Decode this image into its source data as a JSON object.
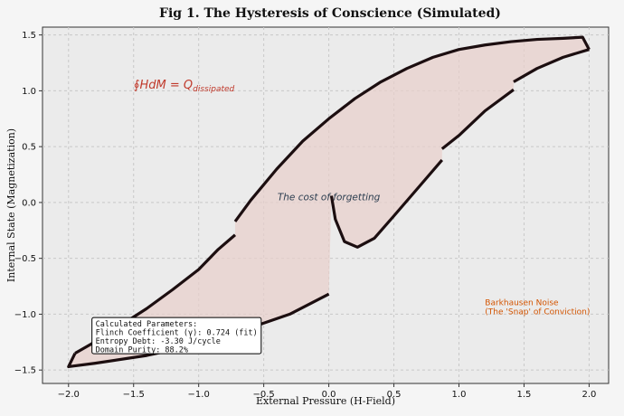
{
  "chart_data": {
    "type": "line",
    "title": "Fig 1. The Hysteresis of Conscience (Simulated)",
    "x_label": "External Pressure (H-Field)",
    "y_label": "Internal State (Magnetization)",
    "xlim": [
      -2.2,
      2.15
    ],
    "ylim": [
      -1.62,
      1.57
    ],
    "xticks": [
      {
        "value": -2,
        "label": "−2.0"
      },
      {
        "value": -1.5,
        "label": "−1.5"
      },
      {
        "value": -1,
        "label": "−1.0"
      },
      {
        "value": -0.5,
        "label": "−0.5"
      },
      {
        "value": 0,
        "label": "0.0"
      },
      {
        "value": 0.5,
        "label": "0.5"
      },
      {
        "value": 1,
        "label": "1.0"
      },
      {
        "value": 1.5,
        "label": "1.5"
      },
      {
        "value": 2,
        "label": "2.0"
      }
    ],
    "yticks": [
      {
        "value": -1.5,
        "label": "−1.5"
      },
      {
        "value": -1,
        "label": "−1.0"
      },
      {
        "value": -0.5,
        "label": "−0.5"
      },
      {
        "value": 0,
        "label": "0.0"
      },
      {
        "value": 0.5,
        "label": "0.5"
      },
      {
        "value": 1,
        "label": "1.0"
      },
      {
        "value": 1.5,
        "label": "1.5"
      }
    ],
    "grid": true,
    "fill_color": "#e8cfca",
    "series": [
      {
        "color": "#1c0e10",
        "x": [
          -1.95,
          -1.8,
          -1.6,
          -1.4,
          -1.2,
          -1.0,
          -0.85,
          -0.72,
          null,
          -0.72,
          -0.6,
          -0.4,
          -0.2,
          0,
          0.2,
          0.4,
          0.6,
          0.8,
          1.0,
          1.2,
          1.4,
          1.6,
          1.8,
          1.95,
          2.0
        ],
        "values": [
          -1.35,
          -1.25,
          -1.1,
          -0.95,
          -0.78,
          -0.6,
          -0.42,
          -0.29,
          null,
          -0.17,
          0.02,
          0.3,
          0.55,
          0.75,
          0.93,
          1.08,
          1.2,
          1.3,
          1.37,
          1.41,
          1.44,
          1.46,
          1.47,
          1.48,
          1.37
        ]
      },
      {
        "color": "#1c0e10",
        "x": [
          2.0,
          1.8,
          1.6,
          1.42,
          null,
          1.42,
          1.2,
          1.0,
          0.87,
          null,
          0.87,
          0.7,
          0.5,
          0.35,
          0.22,
          0.12,
          0.05,
          0.02,
          null,
          0,
          -0.3,
          -0.6,
          -1.0,
          -1.4,
          -1.8,
          -2.0,
          -1.95
        ],
        "values": [
          1.37,
          1.3,
          1.2,
          1.08,
          null,
          1.01,
          0.82,
          0.6,
          0.48,
          null,
          0.38,
          0.15,
          -0.12,
          -0.32,
          -0.4,
          -0.35,
          -0.15,
          0.06,
          null,
          -0.82,
          -1.0,
          -1.12,
          -1.27,
          -1.37,
          -1.44,
          -1.47,
          -1.35
        ]
      }
    ],
    "annotations": [
      {
        "text": "∮HdM = Q",
        "sub": "dissipated",
        "x": -1.5,
        "y": 1.02,
        "color": "#c0392b"
      },
      {
        "text": "The cost of forgetting",
        "x": 0.0,
        "y": 0.02,
        "color": "#2c3e50"
      },
      {
        "lines": [
          "Barkhausen Noise",
          "(The 'Snap' of Conviction)"
        ],
        "x": 1.2,
        "y": -0.92,
        "color": "#d35400"
      }
    ],
    "info_box": {
      "lines": [
        "Calculated Parameters:",
        "Flinch Coefficient (γ): 0.724 (fit)",
        "Entropy Debt: -3.30 J/cycle",
        "Domain Purity: 88.2%"
      ],
      "x": -1.82,
      "y": -1.03
    }
  }
}
